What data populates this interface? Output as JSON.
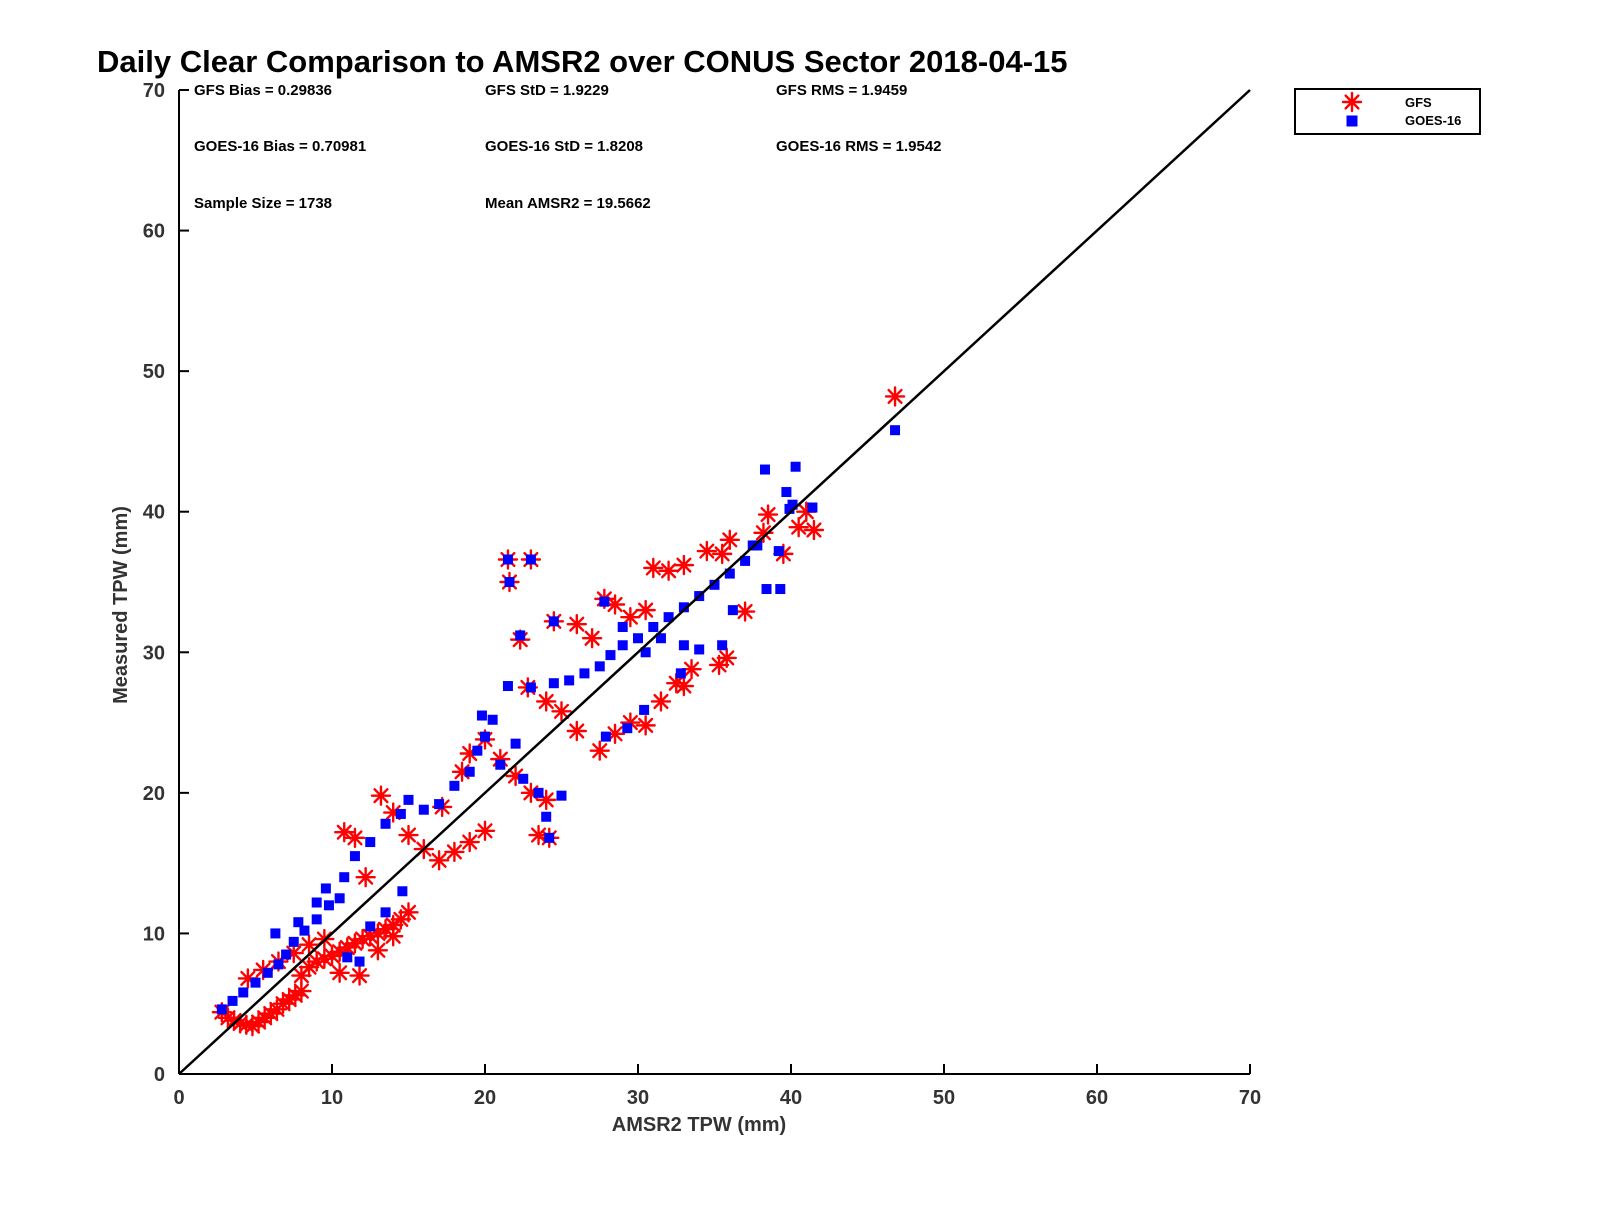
{
  "chart_data": {
    "type": "scatter",
    "title": "Daily Clear Comparison to AMSR2 over CONUS Sector 2018-04-15",
    "xlabel": "AMSR2 TPW (mm)",
    "ylabel": "Measured TPW (mm)",
    "xlim": [
      0,
      70
    ],
    "ylim": [
      0,
      70
    ],
    "xticks": [
      "0",
      "10",
      "20",
      "30",
      "40",
      "50",
      "60",
      "70"
    ],
    "yticks": [
      "0",
      "10",
      "20",
      "30",
      "40",
      "50",
      "60",
      "70"
    ],
    "grid": false,
    "legend_position": "outside-top-right",
    "reference_line": {
      "x": [
        0,
        70
      ],
      "y": [
        0,
        70
      ],
      "color": "#000000"
    },
    "annotations": {
      "gfs_bias": "GFS Bias = 0.29836",
      "gfs_std": "GFS StD = 1.9229",
      "gfs_rms": "GFS RMS = 1.9459",
      "goes_bias": "GOES-16 Bias = 0.70981",
      "goes_std": "GOES-16 StD = 1.8208",
      "goes_rms": "GOES-16 RMS = 1.9542",
      "sample_size": "Sample Size = 1738",
      "mean_amsr2": "Mean AMSR2 = 19.5662"
    },
    "series": [
      {
        "name": "GFS",
        "marker": "asterisk",
        "color": "#ff0000",
        "points": [
          [
            2.8,
            4.4
          ],
          [
            3.2,
            4.0
          ],
          [
            3.6,
            3.8
          ],
          [
            4.0,
            3.6
          ],
          [
            4.4,
            3.5
          ],
          [
            4.8,
            3.4
          ],
          [
            5.2,
            3.7
          ],
          [
            5.6,
            4.0
          ],
          [
            6.0,
            4.3
          ],
          [
            6.4,
            4.6
          ],
          [
            6.8,
            5.0
          ],
          [
            7.2,
            5.3
          ],
          [
            7.6,
            5.6
          ],
          [
            8.0,
            5.9
          ],
          [
            4.5,
            6.8
          ],
          [
            5.5,
            7.4
          ],
          [
            6.5,
            8.0
          ],
          [
            7.5,
            8.6
          ],
          [
            8.5,
            9.2
          ],
          [
            9.5,
            9.6
          ],
          [
            8.0,
            7.0
          ],
          [
            8.5,
            7.6
          ],
          [
            9.0,
            8.0
          ],
          [
            9.5,
            8.2
          ],
          [
            10.0,
            8.4
          ],
          [
            10.5,
            8.7
          ],
          [
            11.0,
            9.0
          ],
          [
            11.5,
            9.3
          ],
          [
            12.0,
            9.6
          ],
          [
            12.5,
            9.8
          ],
          [
            13.0,
            10.0
          ],
          [
            13.5,
            10.3
          ],
          [
            14.0,
            10.6
          ],
          [
            14.5,
            11.0
          ],
          [
            15.0,
            11.5
          ],
          [
            10.5,
            7.2
          ],
          [
            11.8,
            7.0
          ],
          [
            13.0,
            8.8
          ],
          [
            14.0,
            9.8
          ],
          [
            10.8,
            17.2
          ],
          [
            11.5,
            16.8
          ],
          [
            12.2,
            14.0
          ],
          [
            13.2,
            19.8
          ],
          [
            14.0,
            18.6
          ],
          [
            15.0,
            17.0
          ],
          [
            16.0,
            16.0
          ],
          [
            17.0,
            15.2
          ],
          [
            18.0,
            15.8
          ],
          [
            19.0,
            16.5
          ],
          [
            20.0,
            17.3
          ],
          [
            17.2,
            19.0
          ],
          [
            18.5,
            21.5
          ],
          [
            19.0,
            22.8
          ],
          [
            20.0,
            23.8
          ],
          [
            21.0,
            22.4
          ],
          [
            22.0,
            21.2
          ],
          [
            23.0,
            20.0
          ],
          [
            24.0,
            19.5
          ],
          [
            23.5,
            17.0
          ],
          [
            24.2,
            16.8
          ],
          [
            21.5,
            36.6
          ],
          [
            23.0,
            36.6
          ],
          [
            21.6,
            35.0
          ],
          [
            22.3,
            30.9
          ],
          [
            24.5,
            32.2
          ],
          [
            22.8,
            27.5
          ],
          [
            24.0,
            26.5
          ],
          [
            25.0,
            25.8
          ],
          [
            26.0,
            24.4
          ],
          [
            27.5,
            23.0
          ],
          [
            28.5,
            24.2
          ],
          [
            29.5,
            25.0
          ],
          [
            30.5,
            24.8
          ],
          [
            31.5,
            26.5
          ],
          [
            32.5,
            27.8
          ],
          [
            33.0,
            27.6
          ],
          [
            33.5,
            28.8
          ],
          [
            26.0,
            32.0
          ],
          [
            27.0,
            31.0
          ],
          [
            27.8,
            33.8
          ],
          [
            28.5,
            33.4
          ],
          [
            29.5,
            32.5
          ],
          [
            30.5,
            33.0
          ],
          [
            31.0,
            36.0
          ],
          [
            32.0,
            35.8
          ],
          [
            33.0,
            36.2
          ],
          [
            34.5,
            37.2
          ],
          [
            35.5,
            37.0
          ],
          [
            36.0,
            38.0
          ],
          [
            35.3,
            29.1
          ],
          [
            35.8,
            29.6
          ],
          [
            37.0,
            32.9
          ],
          [
            38.2,
            38.5
          ],
          [
            38.5,
            39.8
          ],
          [
            39.5,
            37.0
          ],
          [
            40.5,
            38.9
          ],
          [
            41.5,
            38.7
          ],
          [
            41.0,
            40.0
          ],
          [
            46.8,
            48.2
          ]
        ]
      },
      {
        "name": "GOES-16",
        "marker": "square",
        "color": "#0000ff",
        "points": [
          [
            2.8,
            4.6
          ],
          [
            3.5,
            5.2
          ],
          [
            4.2,
            5.8
          ],
          [
            5.0,
            6.5
          ],
          [
            5.8,
            7.2
          ],
          [
            6.5,
            7.8
          ],
          [
            7.0,
            8.5
          ],
          [
            7.5,
            9.4
          ],
          [
            8.2,
            10.2
          ],
          [
            9.0,
            11.0
          ],
          [
            9.8,
            12.0
          ],
          [
            10.5,
            12.5
          ],
          [
            6.3,
            10.0
          ],
          [
            7.8,
            10.8
          ],
          [
            9.0,
            12.2
          ],
          [
            9.6,
            13.2
          ],
          [
            10.8,
            14.0
          ],
          [
            11.0,
            8.3
          ],
          [
            11.8,
            8.0
          ],
          [
            12.5,
            10.5
          ],
          [
            13.5,
            11.5
          ],
          [
            14.6,
            13.0
          ],
          [
            11.5,
            15.5
          ],
          [
            12.5,
            16.5
          ],
          [
            13.5,
            17.8
          ],
          [
            14.5,
            18.5
          ],
          [
            15.0,
            19.5
          ],
          [
            16.0,
            18.8
          ],
          [
            17.0,
            19.2
          ],
          [
            18.0,
            20.5
          ],
          [
            19.0,
            21.5
          ],
          [
            19.5,
            23.0
          ],
          [
            20.0,
            24.0
          ],
          [
            20.5,
            25.2
          ],
          [
            19.8,
            25.5
          ],
          [
            21.0,
            22.0
          ],
          [
            22.0,
            23.5
          ],
          [
            22.5,
            21.0
          ],
          [
            23.5,
            20.0
          ],
          [
            24.0,
            18.3
          ],
          [
            24.2,
            16.8
          ],
          [
            25.0,
            19.8
          ],
          [
            21.5,
            36.6
          ],
          [
            23.0,
            36.6
          ],
          [
            21.6,
            35.0
          ],
          [
            22.3,
            31.2
          ],
          [
            24.5,
            32.2
          ],
          [
            21.5,
            27.6
          ],
          [
            23.0,
            27.5
          ],
          [
            24.5,
            27.8
          ],
          [
            25.5,
            28.0
          ],
          [
            26.5,
            28.5
          ],
          [
            27.5,
            29.0
          ],
          [
            28.2,
            29.8
          ],
          [
            29.0,
            30.5
          ],
          [
            30.0,
            31.0
          ],
          [
            31.0,
            31.8
          ],
          [
            32.0,
            32.5
          ],
          [
            33.0,
            33.2
          ],
          [
            34.0,
            34.0
          ],
          [
            35.0,
            34.8
          ],
          [
            36.0,
            35.6
          ],
          [
            37.0,
            36.5
          ],
          [
            37.5,
            37.6
          ],
          [
            27.8,
            33.6
          ],
          [
            29.0,
            31.8
          ],
          [
            30.5,
            30.0
          ],
          [
            31.5,
            31.0
          ],
          [
            33.0,
            30.5
          ],
          [
            34.0,
            30.2
          ],
          [
            35.5,
            30.5
          ],
          [
            36.2,
            33.0
          ],
          [
            27.9,
            24.0
          ],
          [
            29.3,
            24.6
          ],
          [
            30.4,
            25.9
          ],
          [
            32.8,
            28.5
          ],
          [
            37.8,
            37.6
          ],
          [
            38.3,
            43.0
          ],
          [
            38.4,
            34.5
          ],
          [
            39.3,
            34.5
          ],
          [
            39.2,
            37.2
          ],
          [
            39.7,
            41.4
          ],
          [
            39.9,
            40.2
          ],
          [
            40.3,
            43.2
          ],
          [
            40.1,
            40.5
          ],
          [
            41.4,
            40.3
          ],
          [
            46.8,
            45.8
          ]
        ]
      }
    ]
  }
}
